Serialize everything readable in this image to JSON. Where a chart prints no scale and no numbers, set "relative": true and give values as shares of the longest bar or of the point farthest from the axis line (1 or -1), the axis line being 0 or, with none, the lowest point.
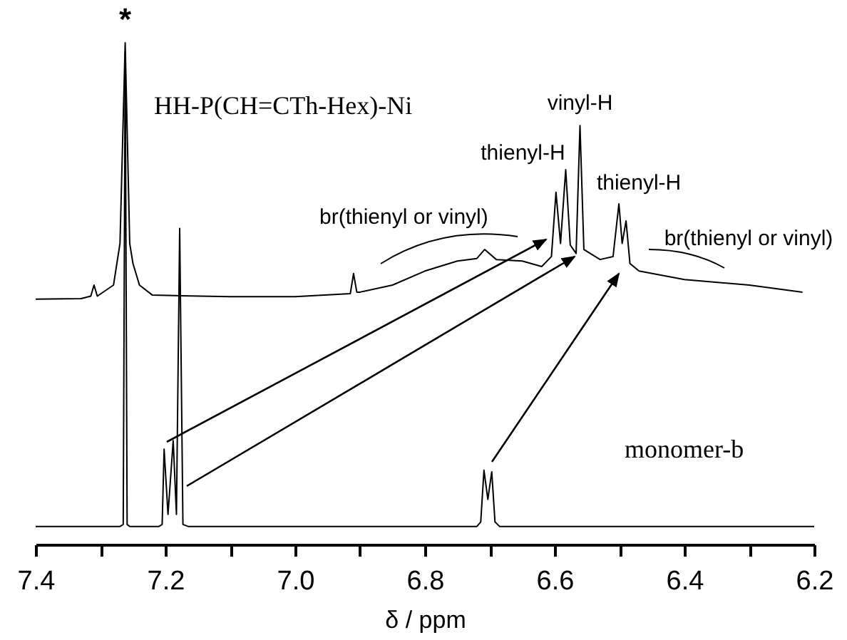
{
  "chart_data": {
    "type": "line",
    "relative": true,
    "xlabel": "δ / ppm",
    "xlim": [
      7.4,
      6.2
    ],
    "xticks": [
      7.4,
      {
        "value": 7.3,
        "label": null
      },
      7.2,
      {
        "value": 7.1,
        "label": null
      },
      {
        "value": 7,
        "label": "7.0"
      },
      {
        "value": 6.9,
        "label": null
      },
      6.8,
      {
        "value": 6.7,
        "label": null
      },
      6.6,
      {
        "value": 6.5,
        "label": null
      },
      6.4,
      {
        "value": 6.3,
        "label": null
      },
      6.2
    ],
    "series": [
      {
        "name": "HH-P(CH=CTh-Hex)-Ni",
        "color": "#000000",
        "x": [
          7.4,
          7.33,
          7.315,
          7.31,
          7.305,
          7.28,
          7.27,
          7.262,
          7.255,
          7.25,
          7.24,
          7.22,
          7.1,
          7.0,
          6.915,
          6.91,
          6.905,
          6.9,
          6.85,
          6.8,
          6.75,
          6.72,
          6.708,
          6.69,
          6.65,
          6.62,
          6.605,
          6.598,
          6.591,
          6.583,
          6.576,
          6.567,
          6.561,
          6.555,
          6.53,
          6.51,
          6.501,
          6.496,
          6.49,
          6.484,
          6.47,
          6.4,
          6.3,
          6.218
        ],
        "values": [
          0.489,
          0.49,
          0.495,
          0.517,
          0.495,
          0.517,
          0.6,
          1.0,
          0.6,
          0.56,
          0.517,
          0.497,
          0.494,
          0.494,
          0.5,
          0.54,
          0.503,
          0.503,
          0.517,
          0.545,
          0.565,
          0.57,
          0.588,
          0.568,
          0.565,
          0.554,
          0.574,
          0.702,
          0.6,
          0.747,
          0.597,
          0.58,
          0.835,
          0.588,
          0.568,
          0.574,
          0.679,
          0.6,
          0.645,
          0.56,
          0.545,
          0.528,
          0.517,
          0.503
        ]
      },
      {
        "name": "monomer-b",
        "color": "#000000",
        "x": [
          7.4,
          7.27,
          7.265,
          7.262,
          7.259,
          7.255,
          7.21,
          7.205,
          7.202,
          7.196,
          7.188,
          7.183,
          7.178,
          7.173,
          7.165,
          6.72,
          6.714,
          6.709,
          6.703,
          6.697,
          6.692,
          6.685,
          6.2
        ],
        "values": [
          0.036,
          0.036,
          0.04,
          0.98,
          0.04,
          0.036,
          0.036,
          0.04,
          0.19,
          0.06,
          0.207,
          0.06,
          0.63,
          0.04,
          0.036,
          0.036,
          0.045,
          0.148,
          0.09,
          0.145,
          0.045,
          0.036,
          0.036
        ]
      }
    ],
    "annotations": [
      {
        "text": "*",
        "x": 7.262,
        "y": 1.0
      },
      {
        "text": "vinyl-H",
        "x": 6.561,
        "y": 0.835
      },
      {
        "text": "thienyl-H",
        "x": 6.583,
        "y": 0.747
      },
      {
        "text": "thienyl-H",
        "x": 6.501,
        "y": 0.679
      },
      {
        "text": "br(thienyl or vinyl)",
        "x": 6.76,
        "y": 0.565
      },
      {
        "text": "br(thienyl or vinyl)",
        "x": 6.4,
        "y": 0.528
      }
    ]
  }
}
